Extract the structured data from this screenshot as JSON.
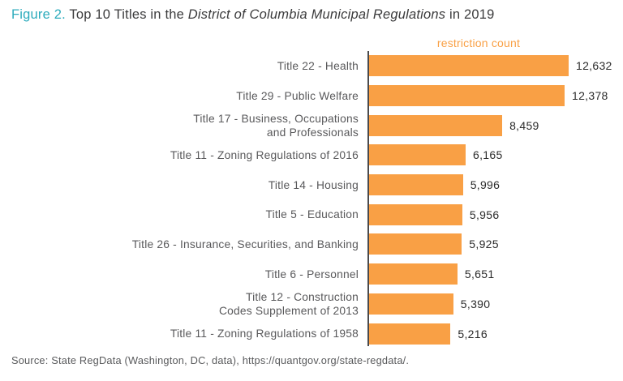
{
  "title": {
    "prefix": "Figure 2.",
    "before_italic": " Top 10 Titles in the ",
    "italic": "District of Columbia Municipal Regulations",
    "suffix": " in 2019"
  },
  "source_line": "Source: State RegData (Washington, DC, data), https://quantgov.org/state-regdata/.",
  "colors": {
    "bar_orange": "#f9a045",
    "figure_label_teal": "#2cabbc",
    "axis_line_gray": "#4a4a4c",
    "title_text": "#3b3b3c",
    "category_text": "#59595b"
  },
  "chart_data": {
    "type": "bar",
    "orientation": "horizontal",
    "title": "Figure 2. Top 10 Titles in the District of Columbia Municipal Regulations in 2019",
    "xlabel": "restriction count",
    "ylabel": "",
    "xlim": [
      0,
      12632
    ],
    "grid": false,
    "legend": false,
    "axis_title": "restriction count",
    "categories": [
      "Title 22 - Health",
      "Title 29 - Public Welfare",
      "Title 17 - Business, Occupations\nand Professionals",
      "Title 11 - Zoning Regulations of 2016",
      "Title 14 - Housing",
      "Title 5 - Education",
      "Title 26 - Insurance, Securities, and Banking",
      "Title 6 - Personnel",
      "Title 12 - Construction\nCodes Supplement of 2013",
      "Title 11 - Zoning Regulations of 1958"
    ],
    "values": [
      12632,
      12378,
      8459,
      6165,
      5996,
      5956,
      5925,
      5651,
      5390,
      5216
    ],
    "value_labels": [
      "12,632",
      "12,378",
      "8,459",
      "6,165",
      "5,996",
      "5,956",
      "5,925",
      "5,651",
      "5,390",
      "5,216"
    ]
  }
}
